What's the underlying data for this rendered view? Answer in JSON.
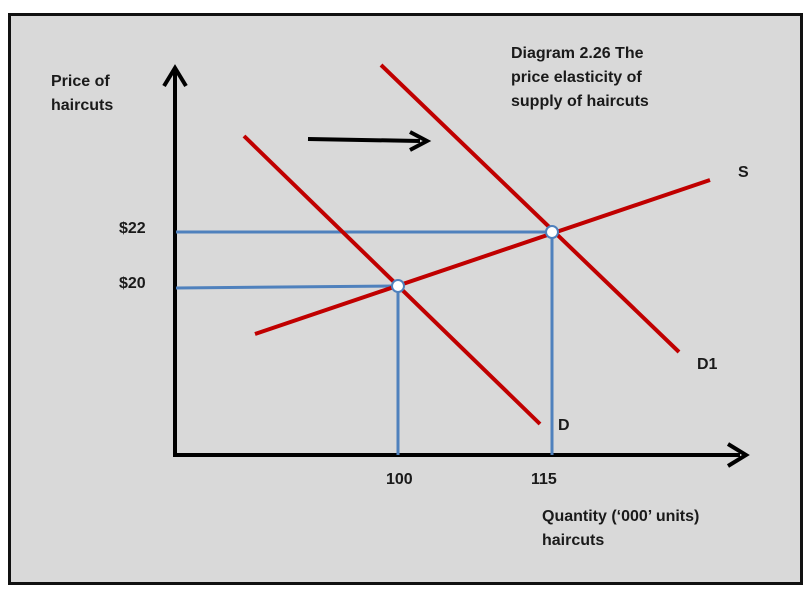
{
  "title": {
    "lines": [
      "Diagram 2.26 The",
      "price elasticity of",
      "supply of haircuts"
    ]
  },
  "axes": {
    "y_label": [
      "Price of",
      "haircuts"
    ],
    "x_label": [
      "Quantity (‘000’ units)",
      "haircuts"
    ],
    "y_ticks": [
      "$22",
      "$20"
    ],
    "x_ticks": [
      "100",
      "115"
    ]
  },
  "curves": {
    "supply": "S",
    "demand": "D",
    "demand_new": "D1"
  },
  "colors": {
    "curve": "#c00000",
    "guide": "#4f81bd",
    "axis": "#000000",
    "background": "#d9d9d9"
  },
  "arrow": "shift-right-arrow",
  "chart_data": {
    "type": "line",
    "equilibria": [
      {
        "quantity": 100,
        "price": 20,
        "demand_curve": "D"
      },
      {
        "quantity": 115,
        "price": 22,
        "demand_curve": "D1"
      }
    ]
  }
}
